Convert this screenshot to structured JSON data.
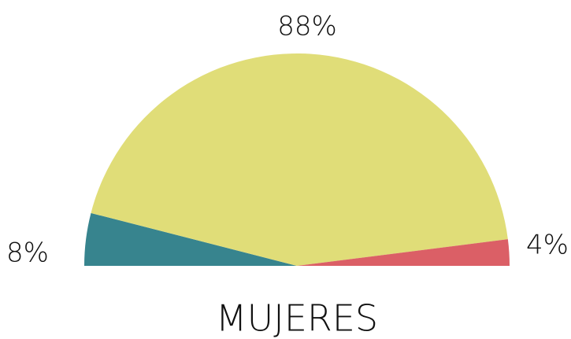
{
  "chart_data": {
    "type": "pie",
    "title": "MUJERES",
    "categories": [
      null,
      null,
      null
    ],
    "values": [
      8,
      88,
      4
    ],
    "value_labels": [
      "8%",
      "88%",
      "4%"
    ],
    "colors": [
      "#37848e",
      "#e0dd78",
      "#db5f66"
    ]
  }
}
